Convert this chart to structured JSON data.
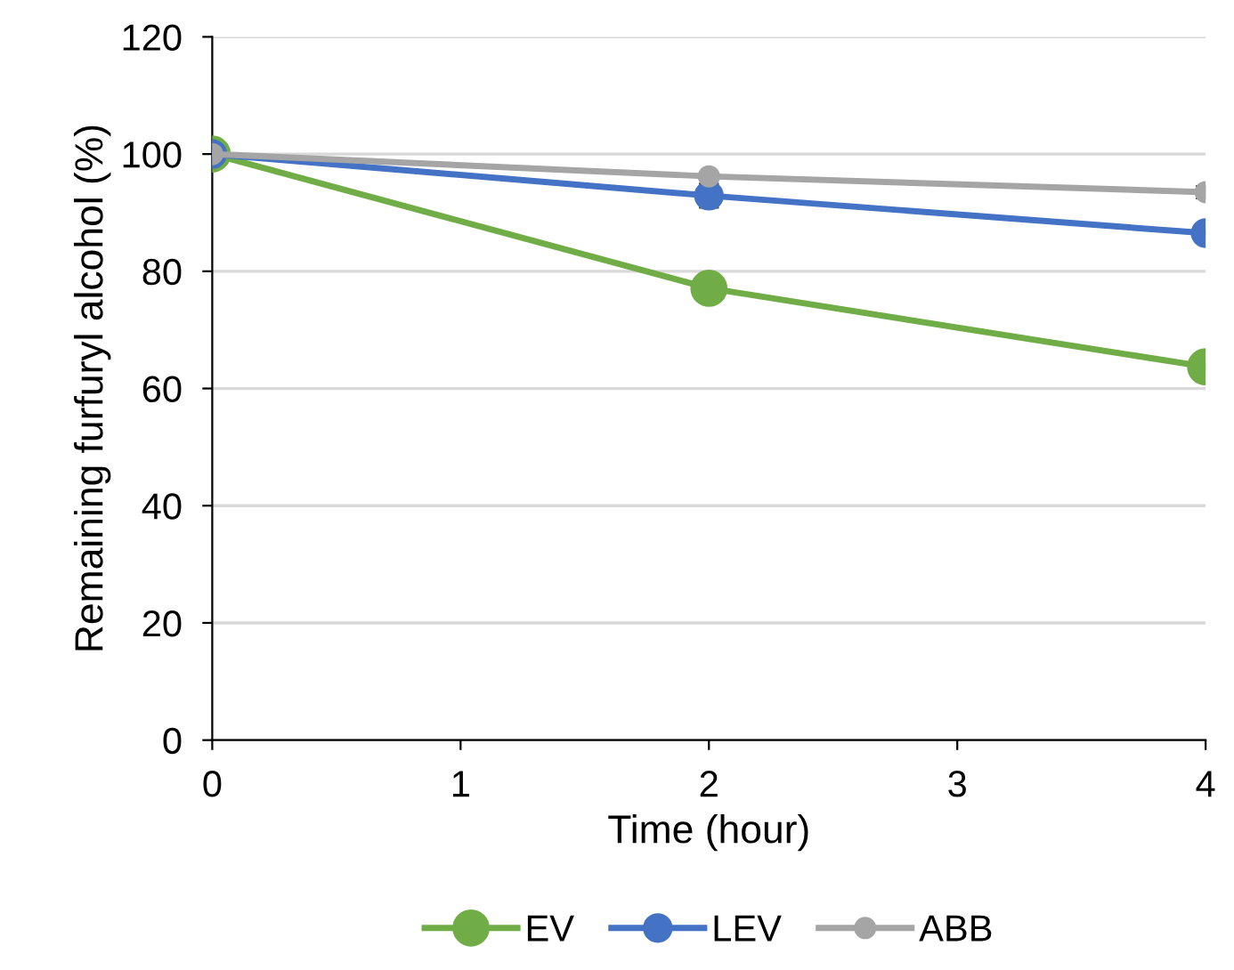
{
  "chart_data": {
    "type": "line",
    "xlabel": "Time (hour)",
    "ylabel": "Remaining furfuryl alcohol (%)",
    "x": [
      0,
      2,
      4
    ],
    "series": [
      {
        "name": "EV",
        "color": "#70ad47",
        "values": [
          100,
          77.1,
          63.7
        ]
      },
      {
        "name": "LEV",
        "color": "#4472c4",
        "values": [
          100,
          92.9,
          86.5
        ],
        "errors": [
          null,
          2,
          null
        ]
      },
      {
        "name": "ABB",
        "color": "#a5a5a5",
        "values": [
          100,
          96.2,
          93.5
        ],
        "errors": [
          null,
          null,
          1
        ]
      }
    ],
    "xlim": [
      0,
      4
    ],
    "xticks": [
      0,
      1,
      2,
      3,
      4
    ],
    "ylim": [
      0,
      120
    ],
    "yticks": [
      0,
      20,
      40,
      60,
      80,
      100,
      120
    ],
    "grid": "y",
    "legend": "bottom",
    "marker": "circle",
    "line_style": "solid"
  }
}
